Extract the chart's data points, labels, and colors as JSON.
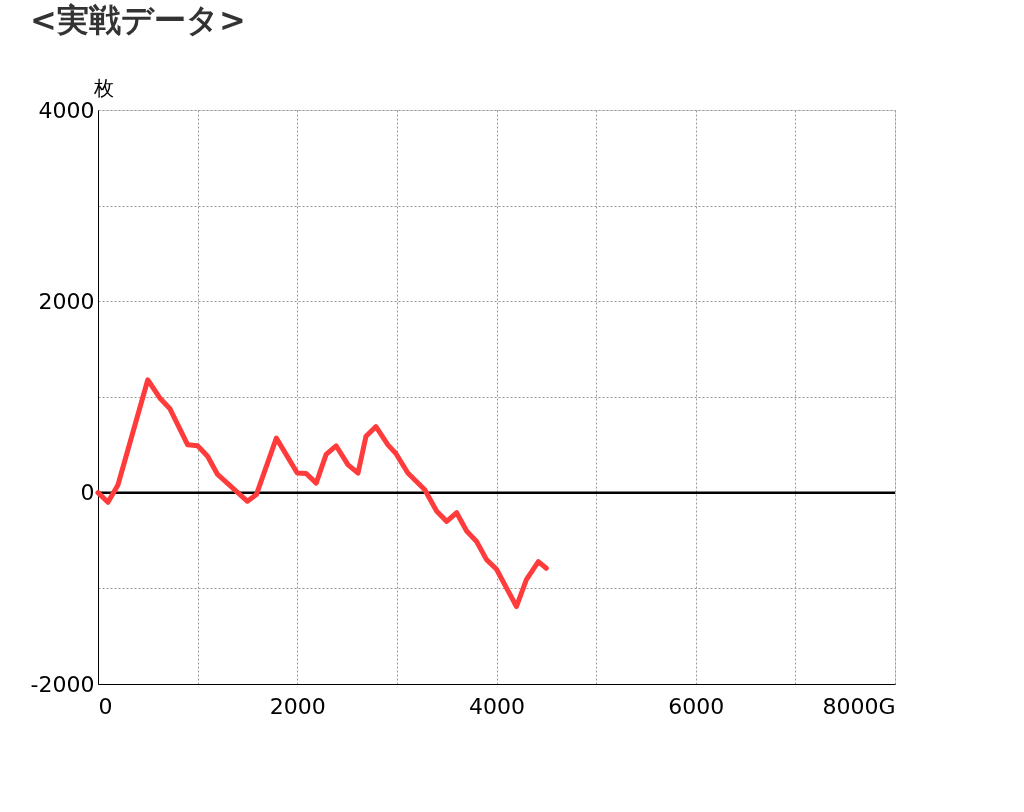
{
  "chart_data": {
    "type": "line",
    "title": "<実戦データ>",
    "ylabel": "枚",
    "x": [
      0,
      100,
      200,
      500,
      620,
      720,
      900,
      1000,
      1100,
      1200,
      1320,
      1500,
      1590,
      1790,
      2000,
      2090,
      2190,
      2290,
      2390,
      2510,
      2610,
      2690,
      2790,
      2910,
      2990,
      3110,
      3280,
      3400,
      3500,
      3600,
      3700,
      3800,
      3900,
      4000,
      4200,
      4300,
      4420,
      4500
    ],
    "series": [
      {
        "color": "#ff3b3b",
        "values": [
          0,
          -100,
          80,
          1180,
          990,
          880,
          500,
          490,
          380,
          190,
          80,
          -90,
          -20,
          570,
          205,
          200,
          100,
          400,
          490,
          290,
          205,
          590,
          690,
          500,
          410,
          205,
          30,
          -195,
          -300,
          -210,
          -400,
          -510,
          -700,
          -800,
          -1190,
          -910,
          -720,
          -790
        ]
      }
    ],
    "xlim": [
      0,
      8000
    ],
    "ylim": [
      -2000,
      4000
    ],
    "xticks": [
      0,
      {
        "value": 1000,
        "label": null
      },
      2000,
      {
        "value": 3000,
        "label": null
      },
      4000,
      {
        "value": 5000,
        "label": null
      },
      6000,
      {
        "value": 7000,
        "label": null
      },
      {
        "value": 8000,
        "label": "8000G"
      }
    ],
    "yticks": [
      -2000,
      {
        "value": -1000,
        "label": null
      },
      0,
      {
        "value": 1000,
        "label": null
      },
      2000,
      {
        "value": 3000,
        "label": null
      },
      4000
    ],
    "ref_lines": [
      {
        "axis": "y",
        "value": 0,
        "color": "#000000"
      }
    ],
    "grid": true,
    "line_style": "solid",
    "marker": "none"
  }
}
